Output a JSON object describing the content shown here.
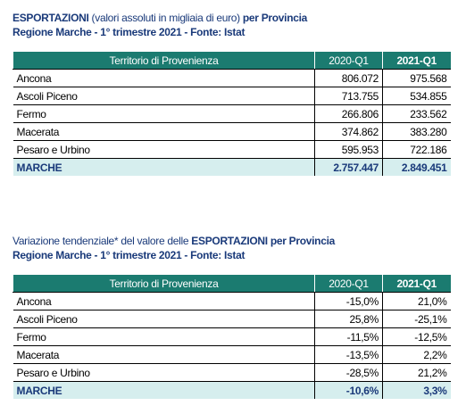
{
  "sections": [
    {
      "title": {
        "line1": [
          {
            "text": "ESPORTAZIONI",
            "bold": true
          },
          {
            "text": " (valori assoluti in migliaia di euro) ",
            "bold": false
          },
          {
            "text": "per Provincia",
            "bold": true
          }
        ],
        "line2": "Regione Marche - 1° trimestre 2021 - Fonte: Istat"
      },
      "table": {
        "header": [
          "Territorio di Provenienza",
          "2020-Q1",
          "2021-Q1"
        ],
        "rows": [
          [
            "Ancona",
            "806.072",
            "975.568"
          ],
          [
            "Ascoli Piceno",
            "713.755",
            "534.855"
          ],
          [
            "Fermo",
            "266.806",
            "233.562"
          ],
          [
            "Macerata",
            "374.862",
            "383.280"
          ],
          [
            "Pesaro e Urbino",
            "595.953",
            "722.186"
          ]
        ],
        "total": [
          "MARCHE",
          "2.757.447",
          "2.849.451"
        ]
      }
    },
    {
      "title": {
        "line1": [
          {
            "text": "Variazione tendenziale* del valore delle ",
            "bold": false
          },
          {
            "text": "ESPORTAZIONI per Provincia",
            "bold": true
          }
        ],
        "line2": "Regione Marche - 1° trimestre 2021 - Fonte: Istat"
      },
      "table": {
        "header": [
          "Territorio di Provenienza",
          "2020-Q1",
          "2021-Q1"
        ],
        "rows": [
          [
            "Ancona",
            "-15,0%",
            "21,0%"
          ],
          [
            "Ascoli Piceno",
            "25,8%",
            "-25,1%"
          ],
          [
            "Fermo",
            "-11,5%",
            "-12,5%"
          ],
          [
            "Macerata",
            "-13,5%",
            "2,2%"
          ],
          [
            "Pesaro e Urbino",
            "-28,5%",
            "21,2%"
          ]
        ],
        "total": [
          "MARCHE",
          "-10,6%",
          "3,3%"
        ]
      }
    }
  ]
}
